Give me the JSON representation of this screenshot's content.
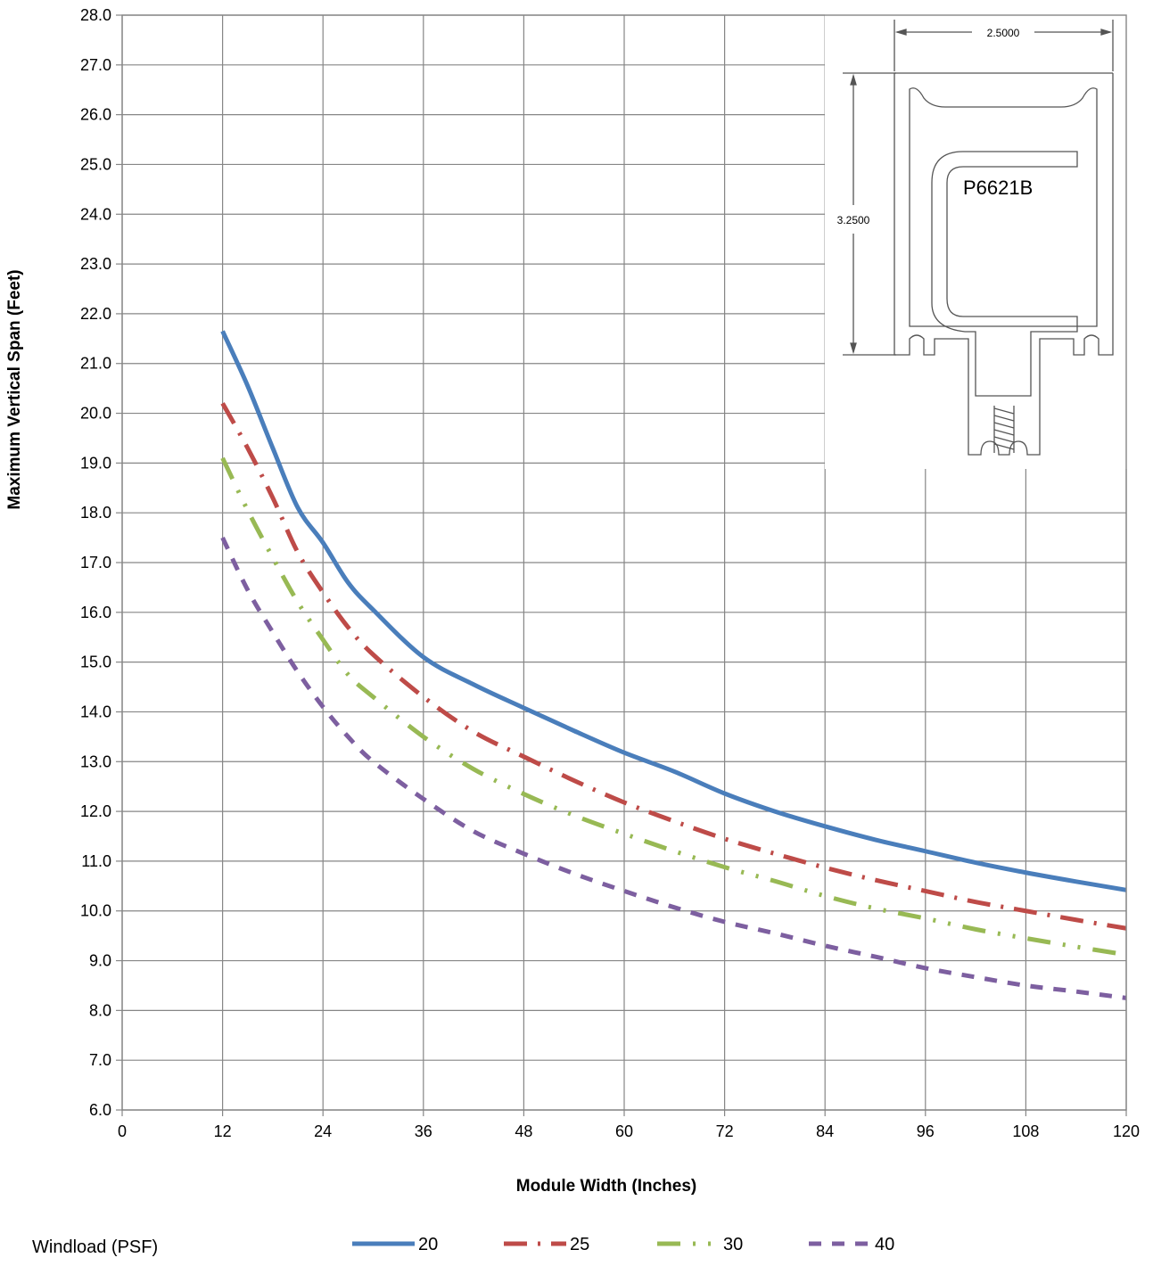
{
  "chart_data": {
    "type": "line",
    "title": "",
    "xlabel": "Module Width (Inches)",
    "ylabel": "Maximum Vertical Span (Feet)",
    "xlim": [
      0,
      120
    ],
    "ylim": [
      6.0,
      28.0
    ],
    "x_ticks": [
      "0",
      "12",
      "24",
      "36",
      "48",
      "60",
      "72",
      "84",
      "96",
      "108",
      "120"
    ],
    "y_ticks": [
      "6.0",
      "7.0",
      "8.0",
      "9.0",
      "10.0",
      "11.0",
      "12.0",
      "13.0",
      "14.0",
      "15.0",
      "16.0",
      "17.0",
      "18.0",
      "19.0",
      "20.0",
      "21.0",
      "22.0",
      "23.0",
      "24.0",
      "25.0",
      "26.0",
      "27.0",
      "28.0"
    ],
    "grid": true,
    "legend": {
      "title": "Windload (PSF)",
      "placement": "bottom"
    },
    "series": [
      {
        "name": "20",
        "color": "#4a7ebb",
        "style": "solid",
        "x": [
          12,
          15,
          18,
          21,
          24,
          27,
          30,
          36,
          42,
          48,
          54,
          60,
          66,
          72,
          78,
          84,
          90,
          96,
          102,
          108,
          114,
          120
        ],
        "y": [
          21.65,
          20.55,
          19.3,
          18.1,
          17.4,
          16.6,
          16.05,
          15.1,
          14.55,
          14.08,
          13.62,
          13.18,
          12.8,
          12.36,
          12.0,
          11.7,
          11.43,
          11.2,
          10.97,
          10.77,
          10.59,
          10.42
        ]
      },
      {
        "name": "25",
        "color": "#be4b48",
        "style": "dash-dot",
        "x": [
          12,
          15,
          18,
          21,
          24,
          27,
          30,
          36,
          42,
          48,
          54,
          60,
          66,
          72,
          78,
          84,
          90,
          96,
          102,
          108,
          114,
          120
        ],
        "y": [
          20.2,
          19.3,
          18.3,
          17.2,
          16.4,
          15.7,
          15.15,
          14.3,
          13.6,
          13.1,
          12.62,
          12.18,
          11.8,
          11.45,
          11.15,
          10.87,
          10.62,
          10.4,
          10.18,
          10.0,
          9.82,
          9.65
        ]
      },
      {
        "name": "30",
        "color": "#98b954",
        "style": "dash-dot-dot",
        "x": [
          12,
          15,
          18,
          21,
          24,
          27,
          30,
          36,
          42,
          48,
          54,
          60,
          66,
          72,
          78,
          84,
          90,
          96,
          102,
          108,
          114,
          120
        ],
        "y": [
          19.1,
          18.05,
          17.1,
          16.2,
          15.45,
          14.75,
          14.3,
          13.5,
          12.85,
          12.35,
          11.92,
          11.55,
          11.2,
          10.88,
          10.6,
          10.3,
          10.05,
          9.85,
          9.63,
          9.45,
          9.28,
          9.12
        ]
      },
      {
        "name": "40",
        "color": "#7d5fa0",
        "style": "dash",
        "x": [
          12,
          15,
          18,
          21,
          24,
          27,
          30,
          36,
          42,
          48,
          54,
          60,
          66,
          72,
          78,
          84,
          90,
          96,
          102,
          108,
          114,
          120
        ],
        "y": [
          17.5,
          16.45,
          15.6,
          14.8,
          14.1,
          13.5,
          13.0,
          12.25,
          11.6,
          11.15,
          10.75,
          10.4,
          10.07,
          9.78,
          9.55,
          9.3,
          9.08,
          8.85,
          8.67,
          8.5,
          8.38,
          8.25
        ]
      }
    ],
    "inset": {
      "width_dim": "2.5000",
      "height_dim": "3.2500",
      "part_label": "P6621B"
    }
  }
}
